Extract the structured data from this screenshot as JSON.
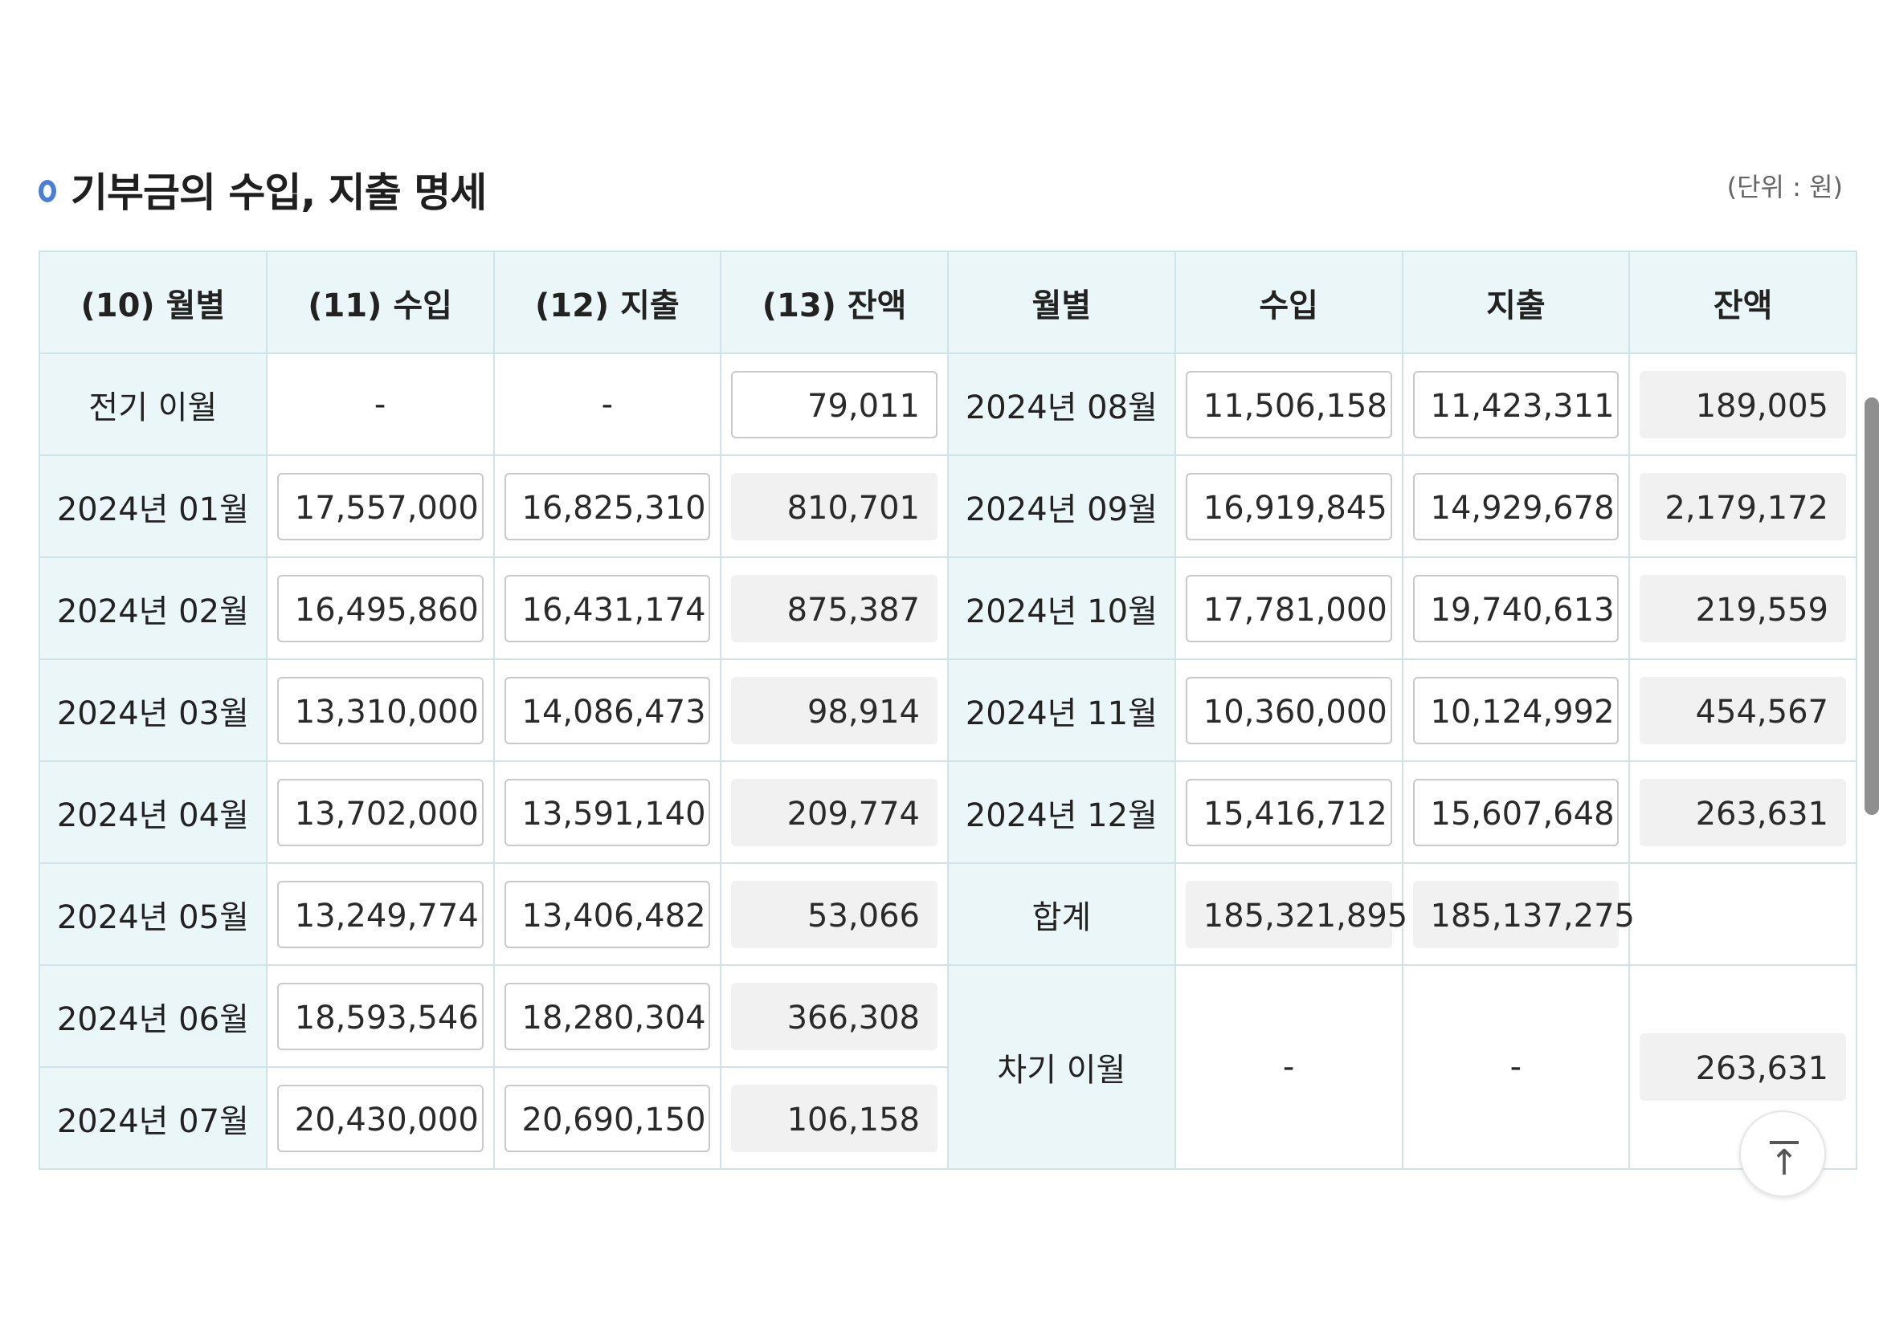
{
  "section": {
    "title": "기부금의 수입, 지출 명세",
    "unit_note": "(단위 : 원)"
  },
  "headers": [
    "(10) 월별",
    "(11) 수입",
    "(12) 지출",
    "(13) 잔액",
    "월별",
    "수입",
    "지출",
    "잔액"
  ],
  "left_rows": [
    {
      "month": "2024년 01월",
      "income": "17,557,000",
      "expense": "16,825,310",
      "balance": "810,701"
    },
    {
      "month": "2024년 02월",
      "income": "16,495,860",
      "expense": "16,431,174",
      "balance": "875,387"
    },
    {
      "month": "2024년 03월",
      "income": "13,310,000",
      "expense": "14,086,473",
      "balance": "98,914"
    },
    {
      "month": "2024년 04월",
      "income": "13,702,000",
      "expense": "13,591,140",
      "balance": "209,774"
    },
    {
      "month": "2024년 05월",
      "income": "13,249,774",
      "expense": "13,406,482",
      "balance": "53,066"
    },
    {
      "month": "2024년 06월",
      "income": "18,593,546",
      "expense": "18,280,304",
      "balance": "366,308"
    },
    {
      "month": "2024년 07월",
      "income": "20,430,000",
      "expense": "20,690,150",
      "balance": "106,158"
    }
  ],
  "carry_in": {
    "label": "전기 이월",
    "income": "-",
    "expense": "-",
    "balance": "79,011"
  },
  "right_rows": [
    {
      "month": "2024년 08월",
      "income": "11,506,158",
      "expense": "11,423,311",
      "balance": "189,005"
    },
    {
      "month": "2024년 09월",
      "income": "16,919,845",
      "expense": "14,929,678",
      "balance": "2,179,172"
    },
    {
      "month": "2024년 10월",
      "income": "17,781,000",
      "expense": "19,740,613",
      "balance": "219,559"
    },
    {
      "month": "2024년 11월",
      "income": "10,360,000",
      "expense": "10,124,992",
      "balance": "454,567"
    },
    {
      "month": "2024년 12월",
      "income": "15,416,712",
      "expense": "15,607,648",
      "balance": "263,631"
    }
  ],
  "total": {
    "label": "합계",
    "income": "185,321,895",
    "expense": "185,137,275"
  },
  "carry_out": {
    "label": "차기 이월",
    "income": "-",
    "expense": "-",
    "balance": "263,631"
  }
}
